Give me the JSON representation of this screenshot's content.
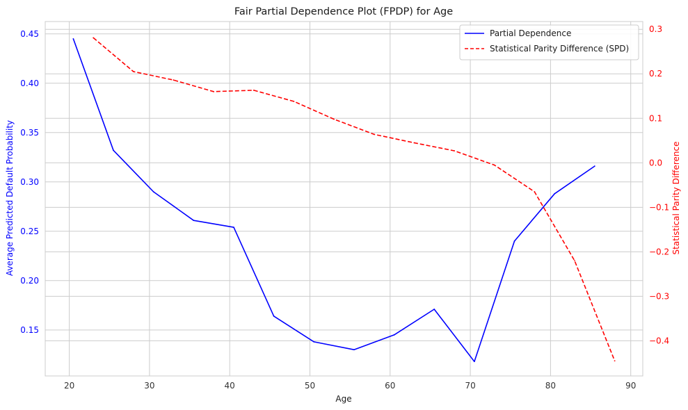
{
  "chart_data": {
    "type": "line",
    "title": "Fair Partial Dependence Plot (FPDP) for Age",
    "xlabel": "Age",
    "xlim": [
      17,
      91.5
    ],
    "xticks": [
      20,
      30,
      40,
      50,
      60,
      70,
      80,
      90
    ],
    "grid": true,
    "legend_position": "top-right",
    "left_axis": {
      "label": "Average Predicted Default Probability",
      "color": "#0000ff",
      "ylim": [
        0.1034,
        0.4625
      ],
      "ticks": [
        0.15,
        0.2,
        0.25,
        0.3,
        0.35,
        0.4,
        0.45
      ],
      "tick_labels": [
        "0.15",
        "0.20",
        "0.25",
        "0.30",
        "0.35",
        "0.40",
        "0.45"
      ]
    },
    "right_axis": {
      "label": "Statistical Parity Difference",
      "color": "#ff0000",
      "ylim": [
        -0.479,
        0.3175
      ],
      "ticks": [
        -0.4,
        -0.3,
        -0.2,
        -0.1,
        0.0,
        0.1,
        0.2,
        0.3
      ],
      "tick_labels": [
        "−0.4",
        "−0.3",
        "−0.2",
        "−0.1",
        "0.0",
        "0.1",
        "0.2",
        "0.3"
      ]
    },
    "series": [
      {
        "name": "Partial Dependence",
        "axis": "left",
        "color": "#0000ff",
        "style": "solid",
        "x": [
          20.5,
          25.5,
          30.5,
          35.5,
          40.5,
          45.5,
          50.5,
          55.5,
          60.5,
          65.5,
          70.5,
          75.5,
          80.5,
          85.5
        ],
        "y": [
          0.445,
          0.332,
          0.29,
          0.261,
          0.254,
          0.164,
          0.138,
          0.13,
          0.145,
          0.171,
          0.118,
          0.24,
          0.288,
          0.316
        ]
      },
      {
        "name": "Statistical Parity Difference (SPD)",
        "axis": "right",
        "color": "#ff0000",
        "style": "dashed",
        "x": [
          23,
          28,
          33,
          38,
          43,
          48,
          53,
          58,
          63,
          68,
          73,
          78,
          83,
          88
        ],
        "y": [
          0.281,
          0.205,
          0.186,
          0.16,
          0.163,
          0.138,
          0.098,
          0.064,
          0.045,
          0.027,
          -0.005,
          -0.065,
          -0.22,
          -0.445
        ]
      }
    ]
  }
}
